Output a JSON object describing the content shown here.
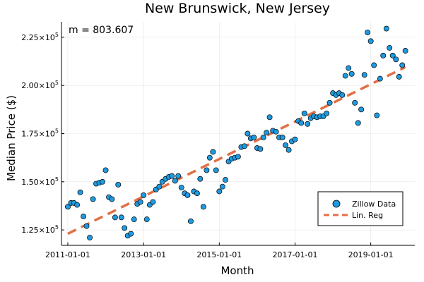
{
  "chart_data": {
    "type": "scatter",
    "title": "New Brunswick, New Jersey",
    "xlabel": "Month",
    "ylabel": "Median Price ($)",
    "annotation": "m = 803.607",
    "grid": true,
    "legend_position": "bottom-right",
    "x_ticks": [
      {
        "date": "2011-01-01",
        "label": "2011-01-01"
      },
      {
        "date": "2013-01-01",
        "label": "2013-01-01"
      },
      {
        "date": "2015-01-01",
        "label": "2015-01-01"
      },
      {
        "date": "2017-01-01",
        "label": "2017-01-01"
      },
      {
        "date": "2019-01-01",
        "label": "2019-01-01"
      }
    ],
    "y_ticks": [
      {
        "value": 125000,
        "mantissa": "1.25",
        "exp": "5"
      },
      {
        "value": 150000,
        "mantissa": "1.50",
        "exp": "5"
      },
      {
        "value": 175000,
        "mantissa": "1.75",
        "exp": "5"
      },
      {
        "value": 200000,
        "mantissa": "2.00",
        "exp": "5"
      },
      {
        "value": 225000,
        "mantissa": "2.25",
        "exp": "5"
      }
    ],
    "xlim": [
      "2010-11-01",
      "2020-03-01"
    ],
    "ylim": [
      117000,
      233000
    ],
    "series": [
      {
        "name": "Zillow Data",
        "kind": "scatter",
        "color": "#1f9ae0",
        "points": [
          [
            "2011-01-01",
            137000
          ],
          [
            "2011-02-01",
            139000
          ],
          [
            "2011-03-01",
            139000
          ],
          [
            "2011-04-01",
            138000
          ],
          [
            "2011-05-01",
            144500
          ],
          [
            "2011-06-01",
            132000
          ],
          [
            "2011-07-01",
            127000
          ],
          [
            "2011-08-01",
            121000
          ],
          [
            "2011-09-01",
            141000
          ],
          [
            "2011-10-01",
            149000
          ],
          [
            "2011-11-01",
            149500
          ],
          [
            "2011-12-01",
            150000
          ],
          [
            "2012-01-01",
            156000
          ],
          [
            "2012-02-01",
            142000
          ],
          [
            "2012-03-01",
            141000
          ],
          [
            "2012-04-01",
            131500
          ],
          [
            "2012-05-01",
            148500
          ],
          [
            "2012-06-01",
            131500
          ],
          [
            "2012-07-01",
            126000
          ],
          [
            "2012-08-01",
            122000
          ],
          [
            "2012-09-01",
            123000
          ],
          [
            "2012-10-01",
            130500
          ],
          [
            "2012-11-01",
            138500
          ],
          [
            "2012-12-01",
            139500
          ],
          [
            "2013-01-01",
            143000
          ],
          [
            "2013-02-01",
            130500
          ],
          [
            "2013-03-01",
            138000
          ],
          [
            "2013-04-01",
            139500
          ],
          [
            "2013-05-01",
            146000
          ],
          [
            "2013-06-01",
            147500
          ],
          [
            "2013-07-01",
            150000
          ],
          [
            "2013-08-01",
            151500
          ],
          [
            "2013-09-01",
            152500
          ],
          [
            "2013-10-01",
            153000
          ],
          [
            "2013-11-01",
            150500
          ],
          [
            "2013-12-01",
            153000
          ],
          [
            "2014-01-01",
            147000
          ],
          [
            "2014-02-01",
            144000
          ],
          [
            "2014-03-01",
            143000
          ],
          [
            "2014-04-01",
            129500
          ],
          [
            "2014-05-01",
            145000
          ],
          [
            "2014-06-01",
            144000
          ],
          [
            "2014-07-01",
            151500
          ],
          [
            "2014-08-01",
            137000
          ],
          [
            "2014-09-01",
            156000
          ],
          [
            "2014-10-01",
            162500
          ],
          [
            "2014-11-01",
            165500
          ],
          [
            "2014-12-01",
            156000
          ],
          [
            "2015-01-01",
            145000
          ],
          [
            "2015-02-01",
            147500
          ],
          [
            "2015-03-01",
            151000
          ],
          [
            "2015-04-01",
            160500
          ],
          [
            "2015-05-01",
            162000
          ],
          [
            "2015-06-01",
            162500
          ],
          [
            "2015-07-01",
            163000
          ],
          [
            "2015-08-01",
            168000
          ],
          [
            "2015-09-01",
            168500
          ],
          [
            "2015-10-01",
            175000
          ],
          [
            "2015-11-01",
            172500
          ],
          [
            "2015-12-01",
            173000
          ],
          [
            "2016-01-01",
            167500
          ],
          [
            "2016-02-01",
            167000
          ],
          [
            "2016-03-01",
            173000
          ],
          [
            "2016-04-01",
            175500
          ],
          [
            "2016-05-01",
            183500
          ],
          [
            "2016-06-01",
            176500
          ],
          [
            "2016-07-01",
            176000
          ],
          [
            "2016-08-01",
            173000
          ],
          [
            "2016-09-01",
            173000
          ],
          [
            "2016-10-01",
            169000
          ],
          [
            "2016-11-01",
            166500
          ],
          [
            "2016-12-01",
            171000
          ],
          [
            "2017-01-01",
            172000
          ],
          [
            "2017-02-01",
            181500
          ],
          [
            "2017-03-01",
            180500
          ],
          [
            "2017-04-01",
            185500
          ],
          [
            "2017-05-01",
            180000
          ],
          [
            "2017-06-01",
            183000
          ],
          [
            "2017-07-01",
            184000
          ],
          [
            "2017-08-01",
            183500
          ],
          [
            "2017-09-01",
            184000
          ],
          [
            "2017-10-01",
            184000
          ],
          [
            "2017-11-01",
            185500
          ],
          [
            "2017-12-01",
            191000
          ],
          [
            "2018-01-01",
            196000
          ],
          [
            "2018-02-01",
            195000
          ],
          [
            "2018-03-01",
            196000
          ],
          [
            "2018-04-01",
            195000
          ],
          [
            "2018-05-01",
            205000
          ],
          [
            "2018-06-01",
            209000
          ],
          [
            "2018-07-01",
            206000
          ],
          [
            "2018-08-01",
            191000
          ],
          [
            "2018-09-01",
            180500
          ],
          [
            "2018-10-01",
            187500
          ],
          [
            "2018-11-01",
            205500
          ],
          [
            "2018-12-01",
            227500
          ],
          [
            "2019-01-01",
            223000
          ],
          [
            "2019-02-01",
            210500
          ],
          [
            "2019-03-01",
            184500
          ],
          [
            "2019-04-01",
            203500
          ],
          [
            "2019-05-01",
            215500
          ],
          [
            "2019-06-01",
            229500
          ],
          [
            "2019-07-01",
            219500
          ],
          [
            "2019-08-01",
            215500
          ],
          [
            "2019-09-01",
            213500
          ],
          [
            "2019-10-01",
            204500
          ],
          [
            "2019-11-01",
            210500
          ],
          [
            "2019-12-01",
            218000
          ]
        ]
      },
      {
        "name": "Lin. Reg",
        "kind": "line",
        "color": "#e26f46",
        "points": [
          [
            "2011-01-01",
            123000
          ],
          [
            "2019-12-01",
            209500
          ]
        ]
      }
    ]
  }
}
